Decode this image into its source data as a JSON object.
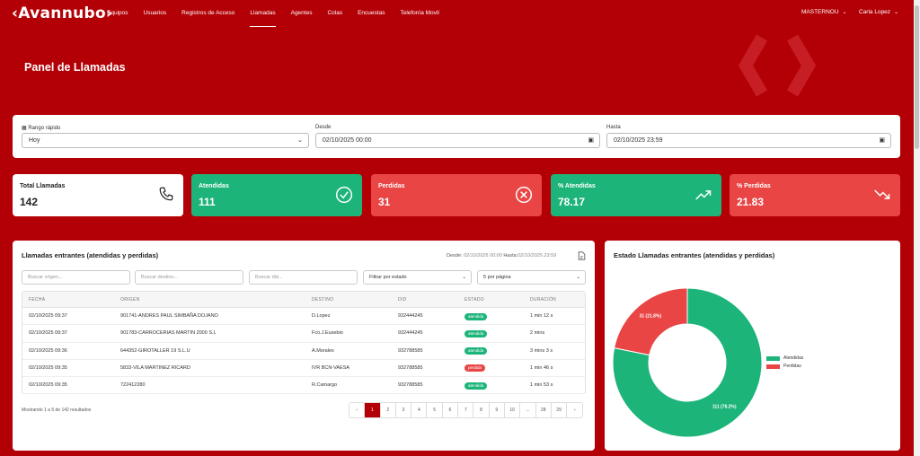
{
  "brand": {
    "logo": "‹Avannubo›"
  },
  "nav": {
    "items": [
      "Equipos",
      "Usuarios",
      "Registros de Acceso",
      "Llamadas",
      "Agentes",
      "Colas",
      "Encuestas",
      "Telefonía Movil"
    ],
    "active": "Llamadas",
    "org": "MASTERNOU",
    "user": "Carla Lopez"
  },
  "page": {
    "title": "Panel de Llamadas"
  },
  "filters": {
    "quick_label": "Rango rápido",
    "quick_value": "Hoy",
    "from_label": "Desde",
    "from_value": "02/10/2025 00:00",
    "to_label": "Hasta",
    "to_value": "02/10/2025 23:59"
  },
  "stats": [
    {
      "label": "Total Llamadas",
      "value": "142"
    },
    {
      "label": "Atendidas",
      "value": "111"
    },
    {
      "label": "Perdidas",
      "value": "31"
    },
    {
      "label": "% Atendidas",
      "value": "78.17"
    },
    {
      "label": "% Perdidas",
      "value": "21.83"
    }
  ],
  "calls": {
    "title": "Llamadas entrantes (atendidas y perdidas)",
    "range_from_label": "Desde:",
    "range_from": "02/10/2025 00:00",
    "range_to_label": "Hasta:",
    "range_to": "02/10/2025 23:59",
    "search_origin_placeholder": "Buscar origen...",
    "search_dest_placeholder": "Buscar destino...",
    "search_did_placeholder": "Buscar did...",
    "state_filter": "Filtrar por estado",
    "per_page": "5 por página",
    "columns": [
      "FECHA",
      "ORIGEN",
      "DESTINO",
      "DID",
      "ESTADO",
      "DURACIÓN"
    ],
    "rows": [
      {
        "fecha": "02/10/2025 09:37",
        "origen": "901741-ANDRES PAUL SIMBAÑA DOJANO",
        "destino": "D.Lopez",
        "did": "932444245",
        "estado": "atendida",
        "duracion": "1 min 12 s"
      },
      {
        "fecha": "02/10/2025 09:37",
        "origen": "901783-CARROCERIAS MARTIN 2000 S.L",
        "destino": "Fco.J.Eusebio",
        "did": "932444245",
        "estado": "atendida",
        "duracion": "2 mins"
      },
      {
        "fecha": "02/10/2025 09:36",
        "origen": "644352-GIROTALLER 19 S.L.U",
        "destino": "A.Morales",
        "did": "932788585",
        "estado": "atendida",
        "duracion": "3 mins 3 s"
      },
      {
        "fecha": "02/10/2025 09:35",
        "origen": "5833-VILA MARTINEZ RICARD",
        "destino": "IVR BCN-VAESA",
        "did": "932788585",
        "estado": "perdida",
        "duracion": "1 min 46 s"
      },
      {
        "fecha": "02/10/2025 09:35",
        "origen": "722412280",
        "destino": "R.Camargo",
        "did": "932788585",
        "estado": "atendida",
        "duracion": "1 min 53 s"
      }
    ],
    "showing": "Mostrando 1 a 5 de 142 resultados",
    "pages": [
      "‹",
      "1",
      "2",
      "3",
      "4",
      "5",
      "6",
      "7",
      "8",
      "9",
      "10",
      "...",
      "28",
      "29",
      "›"
    ],
    "current_page": "1"
  },
  "chart_data": {
    "type": "pie",
    "title": "Estado Llamadas entrantes (atendidas y perdidas)",
    "categories": [
      "Atendidas",
      "Perdidas"
    ],
    "values": [
      111,
      31
    ],
    "labels": [
      "111 (78.2%)",
      "31 (21.8%)"
    ],
    "colors": [
      "#1db47a",
      "#e94545"
    ],
    "legend": "right"
  },
  "colors": {
    "brand": "#b30006",
    "success": "#1db47a",
    "danger": "#e94545"
  }
}
